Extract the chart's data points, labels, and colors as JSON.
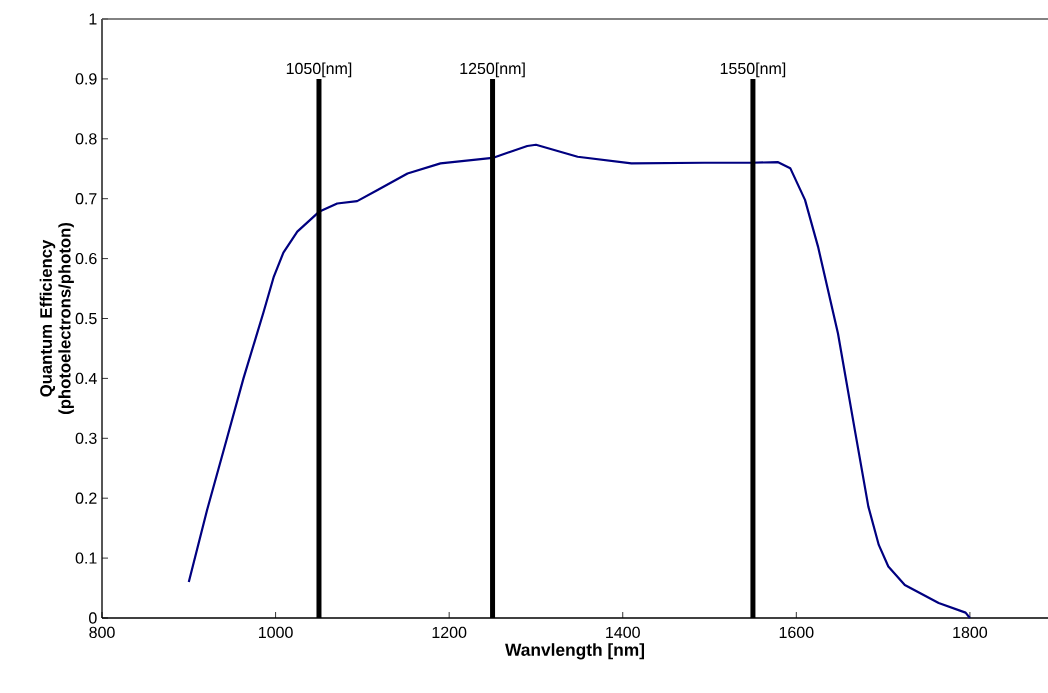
{
  "chart_data": {
    "type": "line",
    "xlabel": "Wanvlength [nm]",
    "ylabel": "Quantum Efficiency (photoelectrons/photon)",
    "xlim": [
      800,
      1890
    ],
    "ylim": [
      0,
      1
    ],
    "xticks": [
      800,
      1000,
      1200,
      1400,
      1600,
      1800
    ],
    "yticks": [
      0,
      0.1,
      0.2,
      0.3,
      0.4,
      0.5,
      0.6,
      0.7,
      0.8,
      0.9,
      1
    ],
    "grid": false,
    "marker": "none",
    "line_style": "solid",
    "series": [
      {
        "color": "#000080",
        "x": [
          900,
          921,
          944,
          963,
          986,
          998,
          1009,
          1025,
          1050,
          1071,
          1094,
          1117,
          1152,
          1190,
          1250,
          1290,
          1300,
          1348,
          1410,
          1494,
          1548,
          1579,
          1593,
          1610,
          1625,
          1648,
          1668,
          1683,
          1695,
          1706,
          1725,
          1764,
          1795,
          1800
        ],
        "values": [
          0.06,
          0.18,
          0.3,
          0.4,
          0.51,
          0.57,
          0.61,
          0.645,
          0.678,
          0.692,
          0.696,
          0.714,
          0.742,
          0.759,
          0.768,
          0.788,
          0.79,
          0.77,
          0.759,
          0.76,
          0.76,
          0.761,
          0.751,
          0.698,
          0.62,
          0.475,
          0.309,
          0.186,
          0.122,
          0.086,
          0.055,
          0.025,
          0.009,
          0
        ]
      },
      {
        "name": "1050[nm]",
        "color": "#000000",
        "x": [
          1050,
          1050
        ],
        "values": [
          0,
          0.9
        ]
      },
      {
        "name": "1250[nm]",
        "color": "#000000",
        "x": [
          1250,
          1250
        ],
        "values": [
          0,
          0.9
        ]
      },
      {
        "name": "1550[nm]",
        "color": "#000000",
        "x": [
          1550,
          1550
        ],
        "values": [
          0,
          0.9
        ]
      }
    ]
  }
}
